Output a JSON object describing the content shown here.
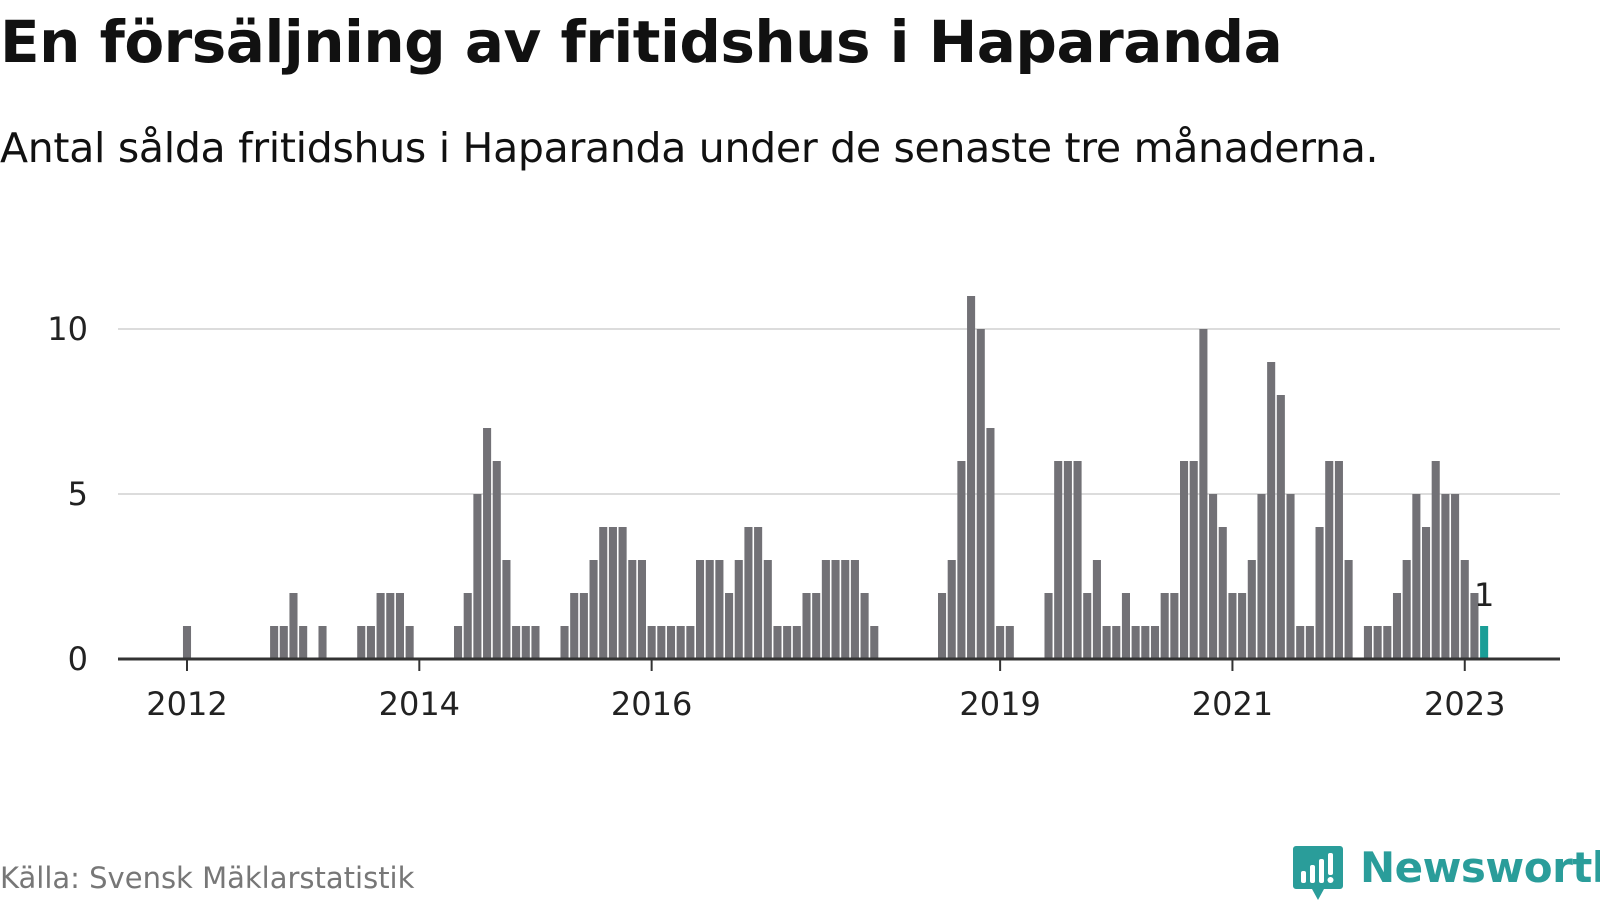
{
  "title": "En försäljning av fritidshus i Haparanda",
  "subtitle": "Antal sålda fritidshus i Haparanda under de senaste tre månaderna.",
  "source": "Källa: Svensk Mäklarstatistik",
  "brand": {
    "name": "Newsworthy",
    "icon": "newsworthy-logo-icon",
    "color": "#2a9d9a"
  },
  "colors": {
    "bar": "#727176",
    "highlight": "#1a9e97",
    "grid": "#dcdcdc",
    "axis": "#333333",
    "text": "#222222"
  },
  "chart_data": {
    "type": "bar",
    "title": "En försäljning av fritidshus i Haparanda",
    "xlabel": "",
    "ylabel": "",
    "ylim": [
      0,
      11
    ],
    "yticks": [
      0,
      5,
      10
    ],
    "xticks": [
      "2012",
      "2014",
      "2016",
      "2019",
      "2021",
      "2023"
    ],
    "grid": true,
    "highlight": {
      "x": "2023-03",
      "value": 1,
      "label": "1"
    },
    "x": [
      "2012-01",
      "2012-02",
      "2012-03",
      "2012-04",
      "2012-05",
      "2012-06",
      "2012-07",
      "2012-08",
      "2012-09",
      "2012-10",
      "2012-11",
      "2012-12",
      "2013-01",
      "2013-02",
      "2013-03",
      "2013-04",
      "2013-05",
      "2013-06",
      "2013-07",
      "2013-08",
      "2013-09",
      "2013-10",
      "2013-11",
      "2013-12",
      "2014-01",
      "2014-02",
      "2014-03",
      "2014-04",
      "2014-05",
      "2014-06",
      "2014-07",
      "2014-08",
      "2014-09",
      "2014-10",
      "2014-11",
      "2014-12",
      "2015-01",
      "2015-02",
      "2015-03",
      "2015-04",
      "2015-05",
      "2015-06",
      "2015-07",
      "2015-08",
      "2015-09",
      "2015-10",
      "2015-11",
      "2015-12",
      "2016-01",
      "2016-02",
      "2016-03",
      "2016-04",
      "2016-05",
      "2016-06",
      "2016-07",
      "2016-08",
      "2016-09",
      "2016-10",
      "2016-11",
      "2016-12",
      "2017-01",
      "2017-02",
      "2017-03",
      "2017-04",
      "2017-05",
      "2017-06",
      "2017-07",
      "2017-08",
      "2017-09",
      "2017-10",
      "2017-11",
      "2017-12",
      "2018-01",
      "2018-02",
      "2018-03",
      "2018-04",
      "2018-05",
      "2018-06",
      "2018-07",
      "2018-08",
      "2018-09",
      "2018-10",
      "2018-11",
      "2018-12",
      "2019-01",
      "2019-02",
      "2019-03",
      "2019-04",
      "2019-05",
      "2019-06",
      "2019-07",
      "2019-08",
      "2019-09",
      "2019-10",
      "2019-11",
      "2019-12",
      "2020-01",
      "2020-02",
      "2020-03",
      "2020-04",
      "2020-05",
      "2020-06",
      "2020-07",
      "2020-08",
      "2020-09",
      "2020-10",
      "2020-11",
      "2020-12",
      "2021-01",
      "2021-02",
      "2021-03",
      "2021-04",
      "2021-05",
      "2021-06",
      "2021-07",
      "2021-08",
      "2021-09",
      "2021-10",
      "2021-11",
      "2021-12",
      "2022-01",
      "2022-02",
      "2022-03",
      "2022-04",
      "2022-05",
      "2022-06",
      "2022-07",
      "2022-08",
      "2022-09",
      "2022-10",
      "2022-11",
      "2022-12",
      "2023-01",
      "2023-02",
      "2023-03"
    ],
    "values": [
      1,
      0,
      0,
      0,
      0,
      0,
      0,
      0,
      0,
      1,
      1,
      2,
      1,
      0,
      1,
      0,
      0,
      0,
      1,
      1,
      2,
      2,
      2,
      1,
      0,
      0,
      0,
      0,
      1,
      2,
      5,
      7,
      6,
      3,
      1,
      1,
      1,
      0,
      0,
      1,
      2,
      2,
      3,
      4,
      4,
      4,
      3,
      3,
      1,
      1,
      1,
      1,
      1,
      3,
      3,
      3,
      2,
      3,
      4,
      4,
      3,
      1,
      1,
      1,
      2,
      2,
      3,
      3,
      3,
      3,
      2,
      1,
      0,
      0,
      0,
      0,
      0,
      0,
      2,
      3,
      6,
      11,
      10,
      7,
      1,
      1,
      0,
      0,
      0,
      2,
      6,
      6,
      6,
      2,
      3,
      1,
      1,
      2,
      1,
      1,
      1,
      2,
      2,
      6,
      6,
      10,
      5,
      4,
      2,
      2,
      3,
      5,
      9,
      8,
      5,
      1,
      1,
      4,
      6,
      6,
      3,
      0,
      1,
      1,
      1,
      2,
      3,
      5,
      4,
      6,
      5,
      5,
      3,
      2,
      1
    ]
  }
}
